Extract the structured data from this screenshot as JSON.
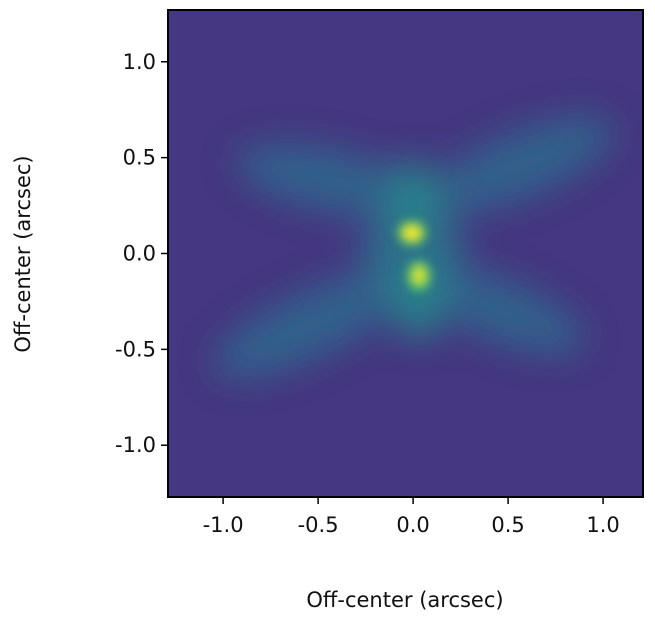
{
  "chart_data": {
    "type": "image",
    "x_label": "Off-center (arcsec)",
    "y_label": "Off-center (arcsec)",
    "xlim": [
      -1.29,
      1.21
    ],
    "ylim": [
      -1.27,
      1.27
    ],
    "xticks": [
      {
        "value": -1,
        "label": "-1.0"
      },
      -0.5,
      {
        "value": 0,
        "label": "0.0"
      },
      0.5,
      {
        "value": 1,
        "label": "1.0"
      }
    ],
    "yticks": [
      {
        "value": -1,
        "label": "-1.0"
      },
      -0.5,
      {
        "value": 0,
        "label": "0.0"
      },
      0.5,
      {
        "value": 1,
        "label": "1.0"
      }
    ]
  }
}
